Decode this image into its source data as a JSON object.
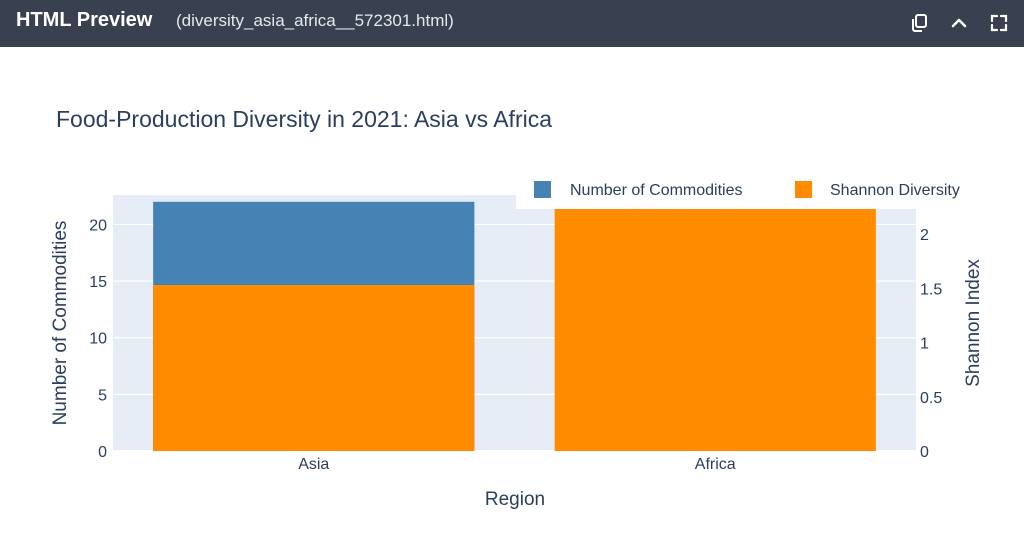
{
  "window": {
    "app_title": "HTML Preview",
    "file_name": "(diversity_asia_africa__572301.html)",
    "icons": [
      "copy-icon",
      "chevron-up-icon",
      "fullscreen-icon"
    ]
  },
  "chart_data": {
    "type": "bar",
    "barmode": "overlay",
    "title": "Food-Production Diversity in 2021: Asia vs Africa",
    "xlabel": "Region",
    "ylabel": "Number of Commodities",
    "y2label": "Shannon Index",
    "categories": [
      "Asia",
      "Africa"
    ],
    "ylim": [
      0,
      22.6
    ],
    "y2lim": [
      0,
      2.36
    ],
    "yticks": [
      "0",
      "5",
      "10",
      "15",
      "20"
    ],
    "y2ticks": [
      "0",
      "0.5",
      "1",
      "1.5",
      "2"
    ],
    "legend_position": "top-right",
    "grid": true,
    "series": [
      {
        "name": "Number of Commodities",
        "axis": "y",
        "color": "#4682b4",
        "values": [
          22,
          0
        ]
      },
      {
        "name": "Shannon Diversity",
        "axis": "y2",
        "color": "#ff8c00",
        "values": [
          1.53,
          2.29
        ]
      }
    ]
  }
}
